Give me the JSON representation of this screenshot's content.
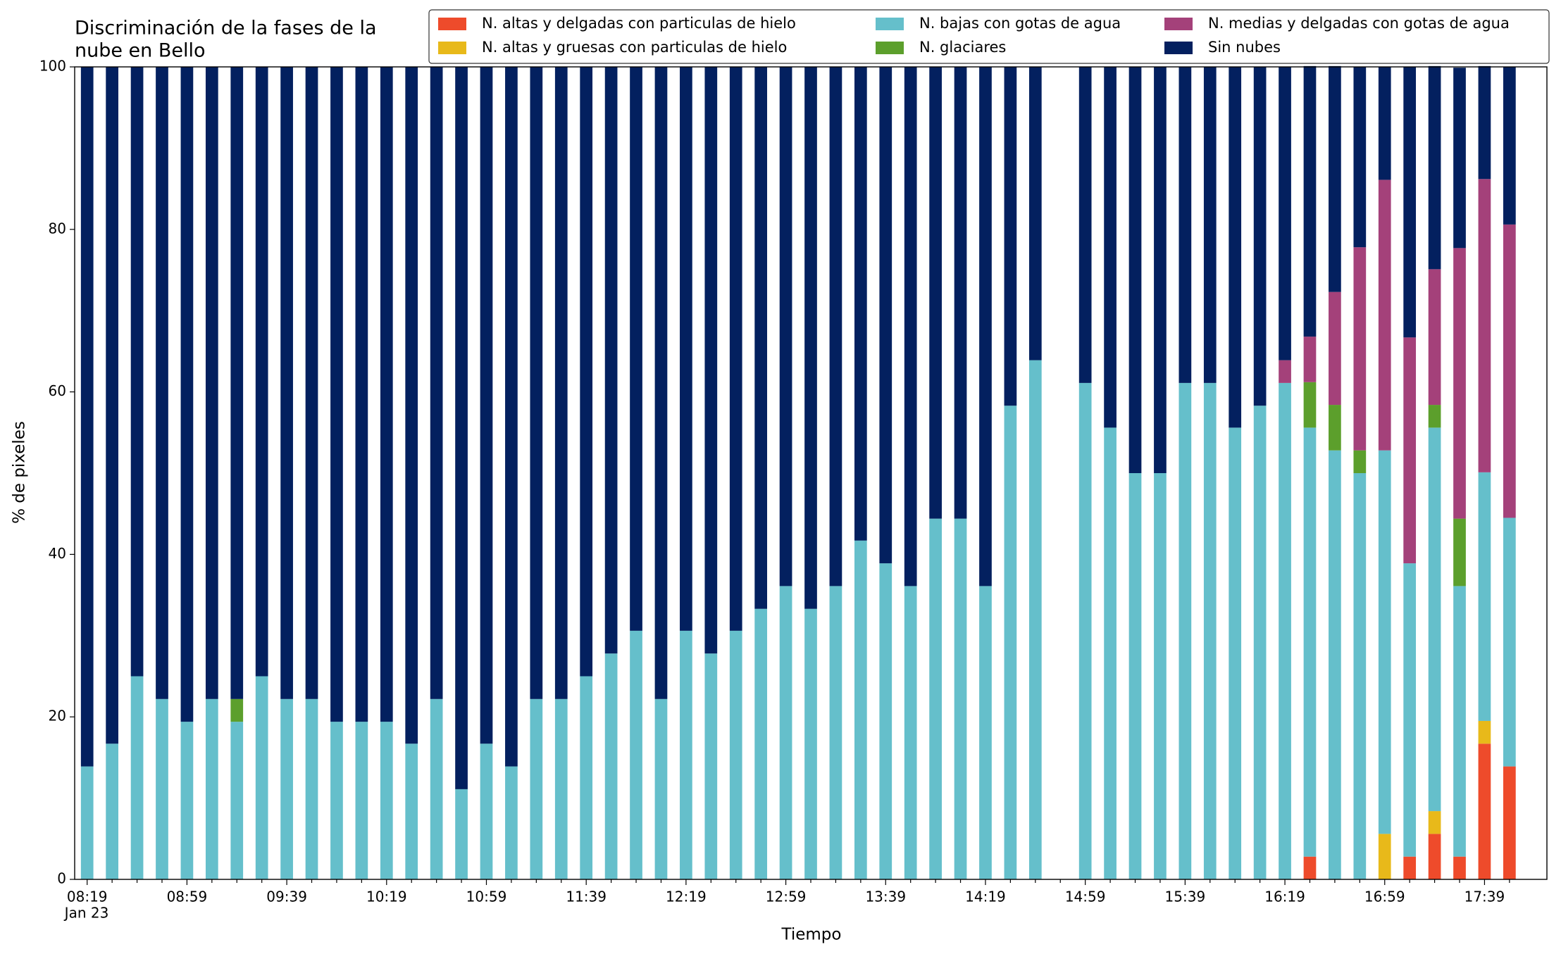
{
  "chart_data": {
    "type": "stacked_bar",
    "title": [
      "Discriminación de la fases de la",
      "nube en Bello"
    ],
    "x_label": "Tiempo",
    "y_label": "% de pixeles",
    "x_date_label": "Jan 23",
    "categories": [
      "08:19",
      null,
      null,
      null,
      "08:59",
      null,
      null,
      null,
      "09:39",
      null,
      null,
      null,
      "10:19",
      null,
      null,
      null,
      "10:59",
      null,
      null,
      null,
      "11:39",
      null,
      null,
      null,
      "12:19",
      null,
      null,
      null,
      "12:59",
      null,
      null,
      null,
      "13:39",
      null,
      null,
      null,
      "14:19",
      null,
      null,
      null,
      "14:59",
      null,
      null,
      null,
      "15:39",
      null,
      null,
      null,
      "16:19",
      null,
      null,
      null,
      "16:59",
      null,
      null,
      null,
      "17:39",
      null
    ],
    "ylim": [
      0,
      100
    ],
    "yticks": [
      0,
      20,
      40,
      60,
      80,
      100
    ],
    "grid": false,
    "legend": "top",
    "series": [
      {
        "name": "N. altas y delgadas con particulas de hielo",
        "color": "#ee4b2b",
        "values": [
          0,
          0,
          0,
          0,
          0,
          0,
          0,
          0,
          0,
          0,
          0,
          0,
          0,
          0,
          0,
          0,
          0,
          0,
          0,
          0,
          0,
          0,
          0,
          0,
          0,
          0,
          0,
          0,
          0,
          0,
          0,
          0,
          0,
          0,
          0,
          0,
          0,
          0,
          0,
          null,
          0,
          0,
          0,
          0,
          0,
          0,
          0,
          0,
          0,
          2.8,
          0,
          0,
          0,
          2.8,
          5.6,
          2.8,
          16.7,
          13.9
        ]
      },
      {
        "name": "N. altas y gruesas con particulas de hielo",
        "color": "#e8b91a",
        "values": [
          0,
          0,
          0,
          0,
          0,
          0,
          0,
          0,
          0,
          0,
          0,
          0,
          0,
          0,
          0,
          0,
          0,
          0,
          0,
          0,
          0,
          0,
          0,
          0,
          0,
          0,
          0,
          0,
          0,
          0,
          0,
          0,
          0,
          0,
          0,
          0,
          0,
          0,
          0,
          null,
          0,
          0,
          0,
          0,
          0,
          0,
          0,
          0,
          0,
          0,
          0,
          0,
          5.6,
          0,
          2.8,
          0,
          2.8,
          0
        ]
      },
      {
        "name": "N. bajas con gotas de agua",
        "color": "#65bfcb",
        "values": [
          13.9,
          16.7,
          25,
          22.2,
          19.4,
          22.2,
          19.4,
          25,
          22.2,
          22.2,
          19.4,
          19.4,
          19.4,
          16.7,
          22.2,
          11.1,
          16.7,
          13.9,
          22.2,
          22.2,
          25,
          27.8,
          30.6,
          22.2,
          30.6,
          27.8,
          30.6,
          33.3,
          36.1,
          33.3,
          36.1,
          41.7,
          38.9,
          36.1,
          44.4,
          44.4,
          36.1,
          58.3,
          63.9,
          null,
          61.1,
          55.6,
          50,
          50,
          61.1,
          61.1,
          55.6,
          58.3,
          61.1,
          52.8,
          52.8,
          50,
          47.2,
          36.1,
          47.2,
          33.3,
          30.6,
          30.6
        ]
      },
      {
        "name": "N. glaciares",
        "color": "#5c9f2c",
        "values": [
          0,
          0,
          0,
          0,
          0,
          0,
          2.8,
          0,
          0,
          0,
          0,
          0,
          0,
          0,
          0,
          0,
          0,
          0,
          0,
          0,
          0,
          0,
          0,
          0,
          0,
          0,
          0,
          0,
          0,
          0,
          0,
          0,
          0,
          0,
          0,
          0,
          0,
          0,
          0,
          null,
          0,
          0,
          0,
          0,
          0,
          0,
          0,
          0,
          0,
          5.6,
          5.6,
          2.8,
          0,
          0,
          2.8,
          8.3,
          0,
          0
        ]
      },
      {
        "name": "N. medias y delgadas con gotas de agua",
        "color": "#a4417a",
        "values": [
          0,
          0,
          0,
          0,
          0,
          0,
          0,
          0,
          0,
          0,
          0,
          0,
          0,
          0,
          0,
          0,
          0,
          0,
          0,
          0,
          0,
          0,
          0,
          0,
          0,
          0,
          0,
          0,
          0,
          0,
          0,
          0,
          0,
          0,
          0,
          0,
          0,
          0,
          0,
          null,
          0,
          0,
          0,
          0,
          0,
          0,
          0,
          0,
          2.8,
          5.6,
          13.9,
          25,
          33.3,
          27.8,
          16.7,
          33.3,
          36.1,
          36.1
        ]
      },
      {
        "name": "Sin nubes",
        "color": "#03205f",
        "values": [
          86.1,
          83.3,
          75,
          77.8,
          80.6,
          77.8,
          77.8,
          75,
          77.8,
          77.8,
          80.6,
          80.6,
          80.6,
          83.3,
          77.8,
          88.9,
          83.3,
          86.1,
          77.8,
          77.8,
          75,
          72.2,
          69.4,
          77.8,
          69.4,
          72.2,
          69.4,
          66.7,
          63.9,
          66.7,
          63.9,
          58.3,
          61.1,
          63.9,
          55.6,
          55.6,
          63.9,
          41.7,
          36.1,
          null,
          38.9,
          44.4,
          50,
          50,
          38.9,
          38.9,
          44.4,
          41.7,
          36.1,
          33.3,
          27.8,
          22.2,
          13.9,
          33.3,
          25,
          22.2,
          13.9,
          19.4
        ]
      }
    ]
  }
}
